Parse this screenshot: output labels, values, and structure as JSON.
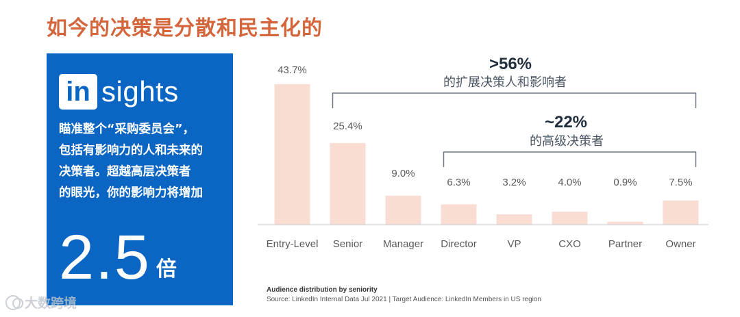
{
  "page_title": "如今的决策是分散和民主化的",
  "insights": {
    "logo_in": "in",
    "logo_rest": "sights",
    "description_lines": [
      "瞄准整个“采购委员会”，",
      "包括有影响力的人和未来的",
      "决策者。超越高层决策者",
      "的眼光，你的影响力将增加"
    ],
    "stat_value": "2.5",
    "stat_unit": "倍"
  },
  "annotations": {
    "top": {
      "value": ">56%",
      "label": "的扩展决策人和影响者"
    },
    "inner": {
      "value": "~22%",
      "label": "的高级决策者"
    }
  },
  "source": {
    "title": "Audience distribution by seniority",
    "text": "Source: LinkedIn Internal Data Jul 2021 | Target Audience: LinkedIn Members in US region"
  },
  "watermark": "大数跨境",
  "chart_data": {
    "type": "bar",
    "title": "Audience distribution by seniority",
    "categories": [
      "Entry-Level",
      "Senior",
      "Manager",
      "Director",
      "VP",
      "CXO",
      "Partner",
      "Owner"
    ],
    "values": [
      43.7,
      25.4,
      9.0,
      6.3,
      3.2,
      4.0,
      0.9,
      7.5
    ],
    "value_labels": [
      "43.7%",
      "25.4%",
      "9.0%",
      "6.3%",
      "3.2%",
      "4.0%",
      "0.9%",
      "7.5%"
    ],
    "unit": "%",
    "ylim": [
      0,
      43.7
    ],
    "grid": false,
    "bar_color": "#f9ddd3",
    "axis_color": "#c8c8c8",
    "bracket_color": "#6b7686",
    "groups": [
      {
        "label": ">56%",
        "from_category": "Senior",
        "to_category": "Owner"
      },
      {
        "label": "~22%",
        "from_category": "Director",
        "to_category": "Owner"
      }
    ]
  }
}
